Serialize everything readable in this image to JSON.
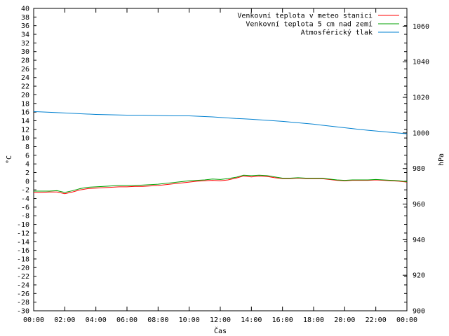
{
  "chart_data": {
    "type": "line",
    "xlabel": "Čas",
    "ylabel_left": "°C",
    "ylabel_right": "hPa",
    "x_ticks": [
      "00:00",
      "02:00",
      "04:00",
      "06:00",
      "08:00",
      "10:00",
      "12:00",
      "14:00",
      "16:00",
      "18:00",
      "20:00",
      "22:00",
      "00:00"
    ],
    "x_unit": "hours",
    "xlim": [
      0,
      24
    ],
    "ylim_left": [
      -30,
      40
    ],
    "ylim_right": [
      900,
      1070
    ],
    "y_ticks_left_step": 2,
    "y_ticks_right": [
      900,
      920,
      940,
      960,
      980,
      1000,
      1020,
      1040,
      1060
    ],
    "grid": false,
    "legend_position": "top-right",
    "colors": {
      "temp_station": "#ff0000",
      "temp_5cm": "#00a000",
      "pressure": "#0080d0"
    },
    "x": [
      0,
      0.5,
      1,
      1.5,
      2,
      2.5,
      3,
      3.5,
      4,
      4.5,
      5,
      5.5,
      6,
      6.5,
      7,
      7.5,
      8,
      8.5,
      9,
      9.5,
      10,
      10.5,
      11,
      11.5,
      12,
      12.5,
      13,
      13.5,
      14,
      14.5,
      15,
      15.5,
      16,
      16.5,
      17,
      17.5,
      18,
      18.5,
      19,
      19.5,
      20,
      20.5,
      21,
      21.5,
      22,
      22.5,
      23,
      23.5,
      24
    ],
    "series": [
      {
        "name": "Venkovní teplota v meteo stanici",
        "axis": "left",
        "values": [
          -2.6,
          -2.6,
          -2.5,
          -2.5,
          -2.9,
          -2.5,
          -2.0,
          -1.7,
          -1.6,
          -1.5,
          -1.4,
          -1.3,
          -1.3,
          -1.2,
          -1.2,
          -1.1,
          -1.0,
          -0.8,
          -0.6,
          -0.4,
          -0.2,
          0.0,
          0.1,
          0.2,
          0.1,
          0.3,
          0.7,
          1.2,
          1.0,
          1.2,
          1.1,
          0.8,
          0.6,
          0.6,
          0.7,
          0.6,
          0.6,
          0.6,
          0.4,
          0.2,
          0.1,
          0.2,
          0.2,
          0.2,
          0.3,
          0.2,
          0.1,
          0.0,
          -0.2
        ]
      },
      {
        "name": "Venkovní teplota 5 cm nad zemí",
        "axis": "left",
        "values": [
          -2.3,
          -2.3,
          -2.3,
          -2.2,
          -2.6,
          -2.2,
          -1.7,
          -1.4,
          -1.3,
          -1.2,
          -1.1,
          -1.0,
          -1.0,
          -1.0,
          -0.9,
          -0.8,
          -0.7,
          -0.5,
          -0.3,
          -0.1,
          0.1,
          0.2,
          0.3,
          0.5,
          0.4,
          0.6,
          0.9,
          1.4,
          1.3,
          1.4,
          1.3,
          1.0,
          0.7,
          0.7,
          0.8,
          0.7,
          0.7,
          0.7,
          0.5,
          0.3,
          0.2,
          0.3,
          0.3,
          0.3,
          0.4,
          0.3,
          0.2,
          0.1,
          -0.1
        ]
      },
      {
        "name": "Atmosférický tlak",
        "axis": "right",
        "values": [
          1012.0,
          1011.8,
          1011.6,
          1011.4,
          1011.2,
          1011.0,
          1010.8,
          1010.6,
          1010.4,
          1010.3,
          1010.2,
          1010.1,
          1010.0,
          1010.0,
          1010.0,
          1009.9,
          1009.8,
          1009.7,
          1009.6,
          1009.6,
          1009.6,
          1009.4,
          1009.2,
          1009.0,
          1008.7,
          1008.4,
          1008.1,
          1007.9,
          1007.7,
          1007.4,
          1007.1,
          1006.8,
          1006.5,
          1006.1,
          1005.7,
          1005.3,
          1004.9,
          1004.4,
          1003.9,
          1003.4,
          1002.9,
          1002.4,
          1001.9,
          1001.5,
          1001.1,
          1000.7,
          1000.3,
          999.9,
          999.5
        ]
      }
    ]
  }
}
